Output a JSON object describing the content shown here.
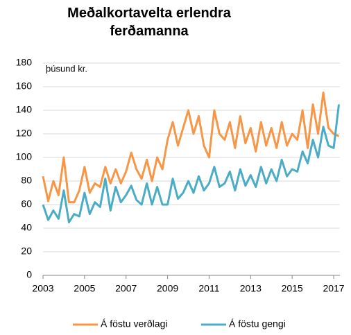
{
  "chart_data": {
    "type": "line",
    "title": "Meðalkortavelta erlendra ferðamanna",
    "y_axis_label": "þúsund kr.",
    "x": [
      2003,
      2003.25,
      2003.5,
      2003.75,
      2004,
      2004.25,
      2004.5,
      2004.75,
      2005,
      2005.25,
      2005.5,
      2005.75,
      2006,
      2006.25,
      2006.5,
      2006.75,
      2007,
      2007.25,
      2007.5,
      2007.75,
      2008,
      2008.25,
      2008.5,
      2008.75,
      2009,
      2009.25,
      2009.5,
      2009.75,
      2010,
      2010.25,
      2010.5,
      2010.75,
      2011,
      2011.25,
      2011.5,
      2011.75,
      2012,
      2012.25,
      2012.5,
      2012.75,
      2013,
      2013.25,
      2013.5,
      2013.75,
      2014,
      2014.25,
      2014.5,
      2014.75,
      2015,
      2015.25,
      2015.5,
      2015.75,
      2016,
      2016.25,
      2016.5,
      2016.75,
      2017,
      2017.25
    ],
    "series": [
      {
        "name": "Á föstu verðlagi",
        "color": "#f79646",
        "values": [
          84,
          63,
          80,
          68,
          100,
          62,
          62,
          72,
          92,
          70,
          78,
          75,
          92,
          78,
          90,
          78,
          88,
          104,
          90,
          82,
          98,
          80,
          100,
          90,
          115,
          130,
          110,
          125,
          140,
          120,
          135,
          110,
          100,
          140,
          120,
          115,
          130,
          108,
          135,
          112,
          125,
          105,
          130,
          110,
          125,
          108,
          130,
          110,
          120,
          115,
          140,
          108,
          145,
          120,
          155,
          125,
          120,
          118
        ]
      },
      {
        "name": "Á föstu gengi",
        "color": "#4bacc6",
        "values": [
          60,
          47,
          55,
          48,
          72,
          45,
          52,
          50,
          70,
          52,
          62,
          58,
          82,
          55,
          75,
          62,
          68,
          76,
          64,
          60,
          78,
          60,
          75,
          60,
          60,
          82,
          65,
          70,
          80,
          70,
          84,
          72,
          78,
          92,
          75,
          78,
          88,
          72,
          90,
          76,
          85,
          75,
          92,
          78,
          90,
          80,
          98,
          84,
          90,
          88,
          105,
          95,
          115,
          100,
          126,
          110,
          108,
          145
        ]
      }
    ],
    "xlim": [
      2003,
      2017.3
    ],
    "xticks": [
      2003,
      2005,
      2007,
      2009,
      2011,
      2013,
      2015,
      2017
    ],
    "ylim": [
      0,
      180
    ],
    "yticks": [
      0,
      20,
      40,
      60,
      80,
      100,
      120,
      140,
      160,
      180
    ],
    "grid": true,
    "legend": "bottom"
  }
}
